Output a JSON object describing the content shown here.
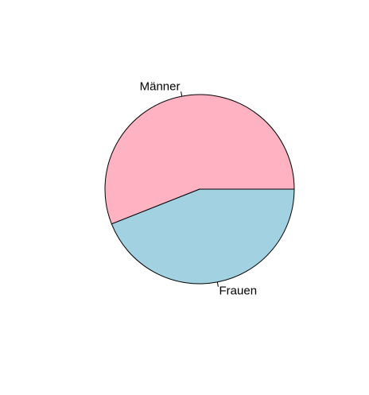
{
  "chart_data": {
    "type": "pie",
    "categories": [
      "Männer",
      "Frauen"
    ],
    "values": [
      56,
      44
    ],
    "colors": [
      "#ffb3c2",
      "#a2d1e2"
    ]
  }
}
